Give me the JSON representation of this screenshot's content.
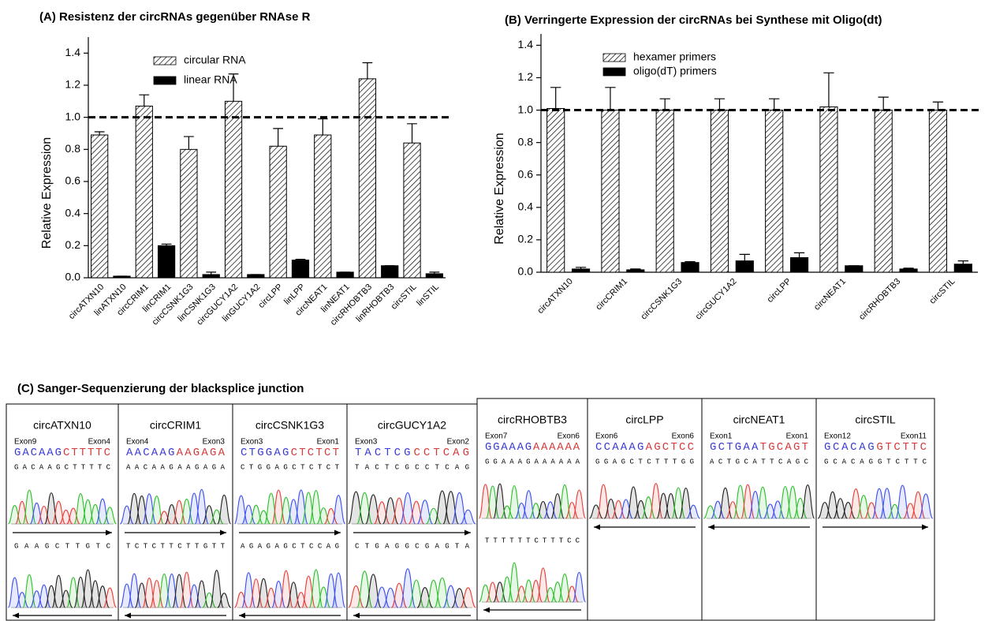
{
  "chart_data": [
    {
      "type": "bar",
      "title": "(A) Resistenz der circRNAs gegenüber RNAse R",
      "y_label": "Relative Expression",
      "categories": [
        "circATXN10",
        "linATXN10",
        "circCRIM1",
        "linCRIM1",
        "circCSNK1G3",
        "linCSNK1G3",
        "circGUCY1A2",
        "linGUCY1A2",
        "circLPP",
        "linLPP",
        "circNEAT1",
        "linNEAT1",
        "circRHOBTB3",
        "linRHOBTB3",
        "circSTIL",
        "linSTIL"
      ],
      "series": [
        {
          "name": "circular RNA",
          "color": "#ffffff",
          "pattern": "hatch",
          "values": [
            0.89,
            null,
            1.07,
            null,
            0.8,
            null,
            1.1,
            null,
            0.82,
            null,
            0.89,
            null,
            1.24,
            null,
            0.84,
            null
          ],
          "errors": [
            0.02,
            null,
            0.07,
            null,
            0.08,
            null,
            0.17,
            null,
            0.11,
            null,
            0.1,
            null,
            0.1,
            null,
            0.12,
            null
          ]
        },
        {
          "name": "linear RNA",
          "color": "#000000",
          "values": [
            null,
            0.01,
            null,
            0.2,
            null,
            0.02,
            null,
            0.02,
            null,
            0.11,
            null,
            0.035,
            null,
            0.075,
            null,
            0.025
          ],
          "errors": [
            null,
            0,
            null,
            0.01,
            null,
            0.015,
            null,
            0,
            null,
            0.005,
            null,
            0,
            null,
            0,
            null,
            0.01
          ]
        }
      ],
      "ylim": [
        0,
        1.5
      ],
      "yticks": [
        {
          "value": 0,
          "label": "0.0"
        },
        0.2,
        0.4,
        0.6,
        0.8,
        {
          "value": 1,
          "label": "1.0"
        },
        1.2,
        1.4
      ],
      "reference_line": 1,
      "legend": "top-left"
    },
    {
      "type": "bar",
      "title": "(B) Verringerte Expression der circRNAs bei Synthese mit Oligo(dt)",
      "y_label": "Relative Expression",
      "categories": [
        "circATXN10",
        "circCRIM1",
        "circCSNK1G3",
        "circGUCY1A2",
        "circLPP",
        "circNEAT1",
        "circRHOBTB3",
        "circSTIL"
      ],
      "series": [
        {
          "name": "hexamer primers",
          "color": "#ffffff",
          "pattern": "hatch",
          "values": [
            1.01,
            1.0,
            1.0,
            1.0,
            1.0,
            1.02,
            1.0,
            1.0
          ],
          "errors": [
            0.13,
            0.14,
            0.07,
            0.07,
            0.07,
            0.21,
            0.08,
            0.05
          ]
        },
        {
          "name": "oligo(dT) primers",
          "color": "#000000",
          "values": [
            0.02,
            0.015,
            0.06,
            0.07,
            0.09,
            0.04,
            0.02,
            0.05
          ],
          "errors": [
            0.01,
            0.005,
            0.005,
            0.04,
            0.03,
            0,
            0.005,
            0.02
          ]
        }
      ],
      "ylim": [
        0,
        1.47
      ],
      "yticks": [
        {
          "value": 0,
          "label": "0.0"
        },
        0.2,
        0.4,
        0.6,
        0.8,
        {
          "value": 1,
          "label": "1.0"
        },
        1.2,
        1.4
      ],
      "reference_line": 1,
      "legend": "top-left"
    }
  ],
  "sequencing": {
    "title": "(C) Sanger-Sequenzierung der blacksplice junction",
    "panels": [
      {
        "name": "circATXN10",
        "exon_left": "Exon9",
        "exon_right": "Exon4",
        "seq_left": "GACAAG",
        "seq_right": "CTTTTC",
        "read": "GACAAGCTTTTC",
        "read2": "GAAGCTTGTC"
      },
      {
        "name": "circCRIM1",
        "exon_left": "Exon4",
        "exon_right": "Exon3",
        "seq_left": "AACAAG",
        "seq_right": "AAGAGA",
        "read": "AACAAGAAGAGA",
        "read2": "TCTCTTCTTGTT"
      },
      {
        "name": "circCSNK1G3",
        "exon_left": "Exon3",
        "exon_right": "Exon1",
        "seq_left": "CTGGAG",
        "seq_right": "CTCTCT",
        "read": "CTGGAGCTCTCT",
        "read2": "AGAGAGCTCCAG"
      },
      {
        "name": "circGUCY1A2",
        "exon_left": "Exon3",
        "exon_right": "Exon2",
        "seq_left": "TACTCG",
        "seq_right": "CCTCAG",
        "read": "TACTCGCCTCAG",
        "read2": "CTGAGGCGAGTA"
      },
      {
        "name": "circRHOBTB3",
        "exon_left": "Exon7",
        "exon_right": "Exon6",
        "seq_left": "GGAAAG",
        "seq_right": "AAAAAA",
        "read": "GGAAAGAAAAAA",
        "read2": "TTTTTTCTTTCC"
      },
      {
        "name": "circLPP",
        "exon_left": "Exon6",
        "exon_right": "Exon6",
        "seq_left": "CCAAAG",
        "seq_right": "AGCTCC",
        "read": "GGAGCTCTTTGG"
      },
      {
        "name": "circNEAT1",
        "exon_left": "Exon1",
        "exon_right": "Exon1",
        "seq_left": "GCTGAA",
        "seq_right": "TGCAGT",
        "read": "ACTGCATTCAGC"
      },
      {
        "name": "circSTIL",
        "exon_left": "Exon12",
        "exon_right": "Exon11",
        "seq_left": "GCACAG",
        "seq_right": "GTCTTC",
        "read": "GCACAGGTCTTC"
      }
    ]
  }
}
